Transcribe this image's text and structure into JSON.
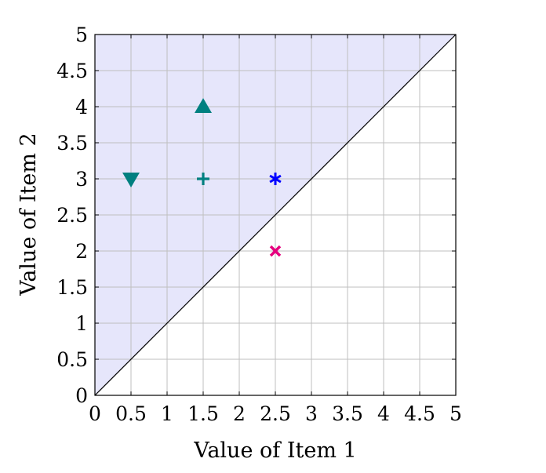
{
  "chart_data": {
    "type": "scatter",
    "title": "",
    "xlabel": "Value of Item 1",
    "ylabel": "Value of Item 2",
    "xlim": [
      0,
      5
    ],
    "ylim": [
      0,
      5
    ],
    "x_ticks": [
      "0",
      "0.5",
      "1",
      "1.5",
      "2",
      "2.5",
      "3",
      "3.5",
      "4",
      "4.5",
      "5"
    ],
    "y_ticks": [
      "0",
      "0.5",
      "1",
      "1.5",
      "2",
      "2.5",
      "3",
      "3.5",
      "4",
      "4.5",
      "5"
    ],
    "grid": true,
    "diagonal_line": {
      "from": [
        0,
        0
      ],
      "to": [
        5,
        5
      ],
      "color": "#000000"
    },
    "shaded_region": {
      "description": "above diagonal y >= x",
      "color": "#e6e6fb"
    },
    "points": [
      {
        "x": 1.5,
        "y": 4,
        "marker": "triangle-up",
        "color": "#008080"
      },
      {
        "x": 0.5,
        "y": 3,
        "marker": "triangle-down",
        "color": "#008080"
      },
      {
        "x": 1.5,
        "y": 3,
        "marker": "plus",
        "color": "#008080"
      },
      {
        "x": 2.5,
        "y": 3,
        "marker": "asterisk",
        "color": "#0000ff"
      },
      {
        "x": 2.5,
        "y": 2,
        "marker": "cross",
        "color": "#e6007e"
      }
    ]
  }
}
